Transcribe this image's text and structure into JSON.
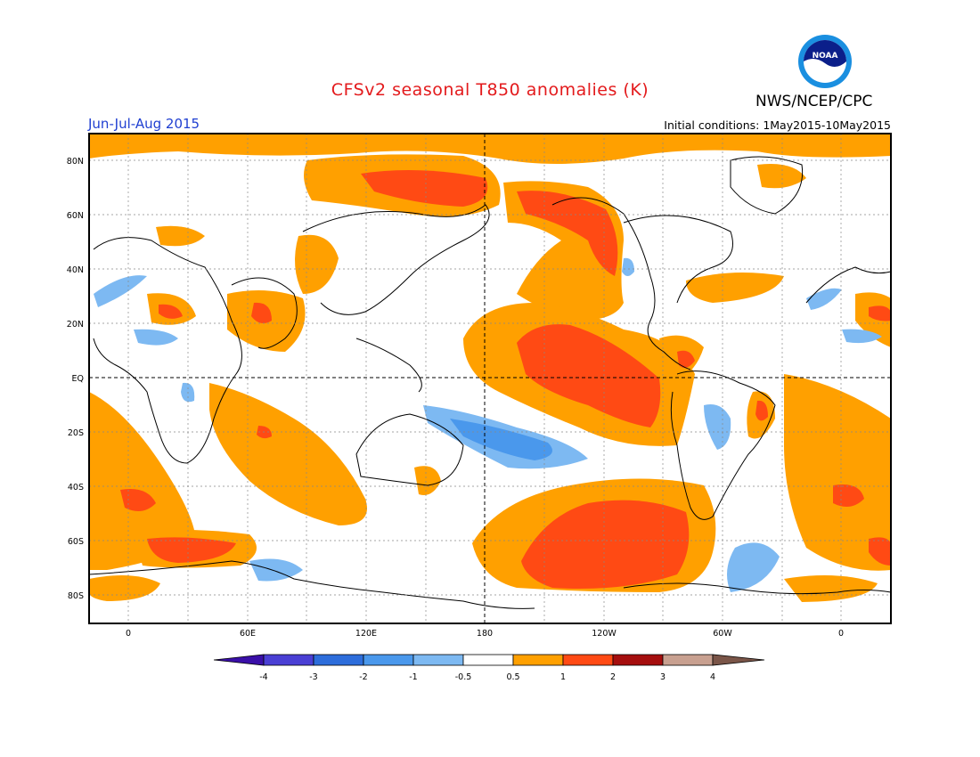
{
  "header": {
    "title": "CFSv2 seasonal T850 anomalies (K)",
    "agency": "NWS/NCEP/CPC",
    "logo_text": "NOAA",
    "season": "Jun-Jul-Aug 2015",
    "initial_conditions": "Initial conditions: 1May2015-10May2015"
  },
  "map": {
    "lat_labels": [
      "80N",
      "60N",
      "40N",
      "20N",
      "EQ",
      "20S",
      "40S",
      "60S",
      "80S"
    ],
    "lon_labels": [
      "0",
      "60E",
      "120E",
      "180",
      "120W",
      "60W",
      "0"
    ],
    "lat_values": [
      80,
      60,
      40,
      20,
      0,
      -20,
      -40,
      -60,
      -80
    ],
    "lon_values": [
      0,
      60,
      120,
      180,
      240,
      300,
      360
    ]
  },
  "colorbar": {
    "labels": [
      "-4",
      "-3",
      "-2",
      "-1",
      "-0.5",
      "0.5",
      "1",
      "2",
      "3",
      "4"
    ],
    "colors": [
      "#3a0fa8",
      "#4a3fd4",
      "#2d6ddb",
      "#4a98ec",
      "#7db9f2",
      "#ffffff",
      "#ffa000",
      "#ff4a14",
      "#a50e0e",
      "#c8a090",
      "#7a5548"
    ]
  },
  "colors": {
    "title": "#e31a1c",
    "season": "#1f3fd1",
    "weak_warm": "#ffa000",
    "warm": "#ff4a14",
    "weak_cool": "#7db9f2",
    "cool": "#4a98ec"
  }
}
